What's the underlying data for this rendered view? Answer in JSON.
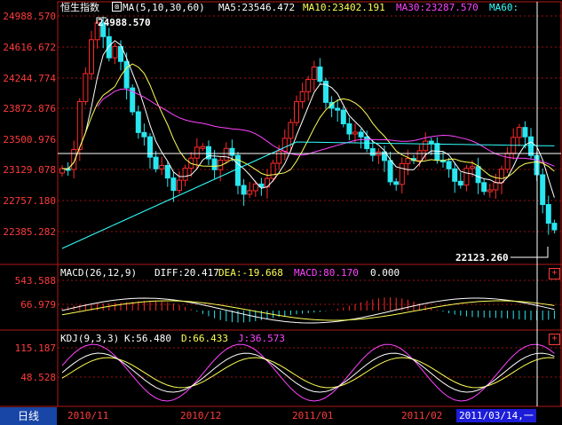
{
  "main_panel": {
    "header": {
      "name": "恒生指数",
      "ma_icon": "ma-toggle-icon",
      "ma_label": "MA(5,10,30,60)",
      "ma5": "MA5:23546.472",
      "ma10": "MA10:23402.191",
      "ma30": "MA30:23287.570",
      "ma60": "MA60:"
    },
    "y_axis": [
      "24988.570",
      "24616.672",
      "24244.774",
      "23872.876",
      "23500.976",
      "23129.078",
      "22757.180",
      "22385.282"
    ],
    "high_label": "24988.570",
    "low_label": "22123.260"
  },
  "macd_panel": {
    "title": "MACD(26,12,9)",
    "diff": "DIFF:20.417",
    "dea": "DEA:-19.668",
    "macd": "MACD:80.170",
    "zero": "0.000",
    "y_axis": [
      "543.588",
      "66.979"
    ]
  },
  "kdj_panel": {
    "title": "KDJ(9,3,3)",
    "k": "K:56.480",
    "d": "D:66.433",
    "j": "J:36.573",
    "y_axis": [
      "115.187",
      "48.528"
    ]
  },
  "x_axis": {
    "period_tab": "日线",
    "dates": [
      "2010/11",
      "2010/12",
      "2011/01",
      "2011/02"
    ],
    "cursor_date": "2011/03/14,一"
  },
  "colors": {
    "axis": "#ff3b3b",
    "up": "#ff2a2a",
    "down": "#29e6f0",
    "ma5": "#ffffff",
    "ma10": "#ffff55",
    "ma30": "#ff44ff",
    "ma60": "#33ffff"
  },
  "icons": {
    "expand": "plus-icon"
  }
}
